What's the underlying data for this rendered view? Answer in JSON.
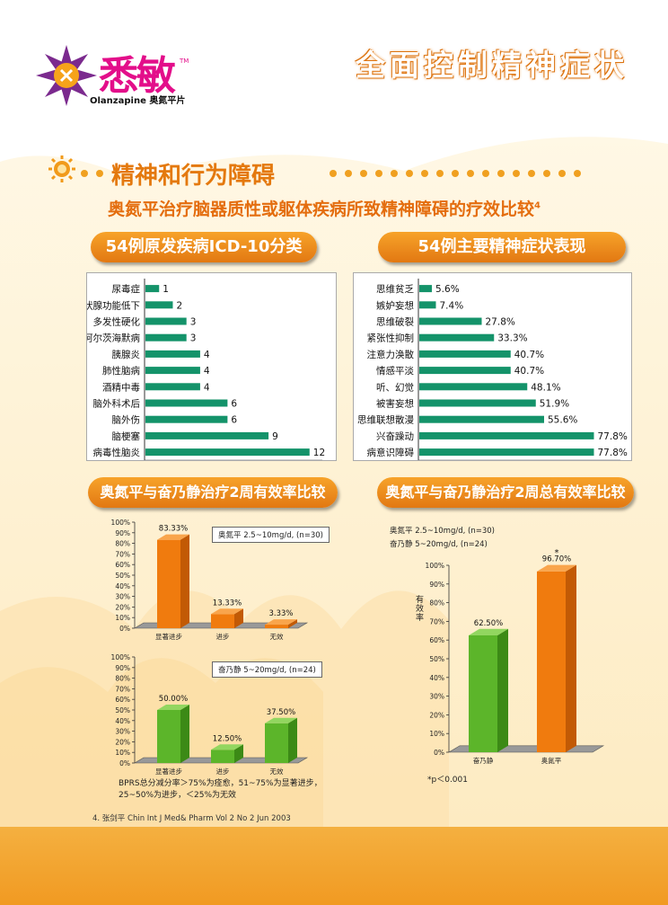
{
  "brand": {
    "name": "悉敏",
    "tm": "TM",
    "sub": "Olanzapine 奥氮平片"
  },
  "page_title": "全面控制精神症状",
  "section_title": "精神和行为障碍",
  "subtitle": "奥氮平治疗脑器质性或躯体疾病所致精神障碍的疗效比较",
  "subtitle_ref": "4",
  "panels": {
    "icd_title": "54例原发疾病ICD-10分类",
    "symptom_title": "54例主要精神症状表现",
    "two_week_title": "奥氮平与奋乃静治疗2周有效率比较",
    "total_title": "奥氮平与奋乃静治疗2周总有效率比较"
  },
  "legend": {
    "olanzapine": "奥氮平  2.5~10mg/d, (n=30)",
    "perphenazine": "奋乃静  5~20mg/d, (n=24)",
    "olz_name": "奥氮平  2.5~10mg/d, (n=30)",
    "per_name": "奋乃静  5~20mg/d, (n=24)"
  },
  "notes": {
    "bprs": "BPRS总分减分率＞75%为痊愈，51~75%为显著进步，25~50%为进步，＜25%为无效",
    "pvalue": "*p＜0.001",
    "yaxis_label": "有效率",
    "star": "*"
  },
  "footnote": "4. 张剑平 Chin Int J Med& Pharm Vol 2 No 2 Jun 2003",
  "colors": {
    "orange": "#f08010",
    "green": "#62b830",
    "teal": "#14936a",
    "title_orange": "#e4790e"
  },
  "chart_data": [
    {
      "type": "bar",
      "orientation": "horizontal",
      "title": "54例原发疾病ICD-10分类",
      "categories": [
        "尿毒症",
        "甲状腺功能低下",
        "多发性硬化",
        "阿尔茨海默病",
        "胰腺炎",
        "肺性脑病",
        "酒精中毒",
        "脑外科术后",
        "脑外伤",
        "脑梗塞",
        "病毒性脑炎"
      ],
      "values": [
        1,
        2,
        3,
        3,
        4,
        4,
        4,
        6,
        6,
        9,
        12
      ],
      "xlim": [
        0,
        13
      ]
    },
    {
      "type": "bar",
      "orientation": "horizontal",
      "title": "54例主要精神症状表现",
      "categories": [
        "思维贫乏",
        "嫉妒妄想",
        "思维破裂",
        "紧张性抑制",
        "注意力涣散",
        "情感平淡",
        "听、幻觉",
        "被害妄想",
        "思维联想散漫",
        "兴奋躁动",
        "病意识障碍"
      ],
      "values": [
        5.6,
        7.4,
        27.8,
        33.3,
        40.7,
        40.7,
        48.1,
        51.9,
        55.6,
        77.8,
        77.8
      ],
      "labels": [
        "5.6%",
        "7.4%",
        "27.8%",
        "33.3%",
        "40.7%",
        "40.7%",
        "48.1%",
        "51.9%",
        "55.6%",
        "77.8%",
        "77.8%"
      ],
      "xlim": [
        0,
        90
      ]
    },
    {
      "type": "bar",
      "title": "奥氮平与奋乃静治疗2周有效率比较",
      "categories": [
        "显著进步",
        "进步",
        "无效"
      ],
      "series": [
        {
          "name": "奥氮平  2.5~10mg/d, (n=30)",
          "values": [
            83.33,
            13.33,
            3.33
          ],
          "labels": [
            "83.33%",
            "13.33%",
            "3.33%"
          ]
        },
        {
          "name": "奋乃静  5~20mg/d, (n=24)",
          "values": [
            50.0,
            12.5,
            37.5
          ],
          "labels": [
            "50.00%",
            "12.50%",
            "37.50%"
          ]
        }
      ],
      "yticks": [
        "0%",
        "10%",
        "20%",
        "30%",
        "40%",
        "50%",
        "60%",
        "70%",
        "80%",
        "90%",
        "100%"
      ],
      "ylim": [
        0,
        100
      ]
    },
    {
      "type": "bar",
      "title": "奥氮平与奋乃静治疗2周总有效率比较",
      "categories": [
        "奋乃静",
        "奥氮平"
      ],
      "values": [
        62.5,
        96.7
      ],
      "labels": [
        "62.50%",
        "96.70%"
      ],
      "ylabel": "有效率",
      "yticks": [
        "0%",
        "10%",
        "20%",
        "30%",
        "40%",
        "50%",
        "60%",
        "70%",
        "80%",
        "90%",
        "100%"
      ],
      "ylim": [
        0,
        100
      ]
    }
  ]
}
